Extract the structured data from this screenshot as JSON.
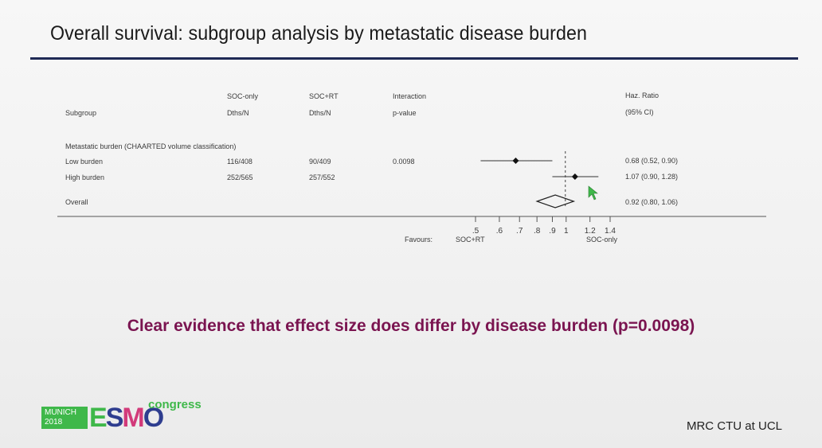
{
  "slide": {
    "title": "Overall survival: subgroup analysis by metastatic disease burden",
    "headline": "Clear evidence that effect size does differ by disease burden (p=0.0098)",
    "footer_right": "MRC CTU at UCL",
    "logo": {
      "city_line1": "MUNICH",
      "city_line2": "2018",
      "brand_letters": [
        "E",
        "S",
        "M",
        "O"
      ],
      "congress": "congress"
    }
  },
  "chart_data": {
    "type": "forest",
    "columns": {
      "subgroup": [
        "",
        "Subgroup"
      ],
      "soc_only": [
        "SOC-only",
        "Dths/N"
      ],
      "soc_rt": [
        "SOC+RT",
        "Dths/N"
      ],
      "interaction": [
        "Interaction",
        "p-value"
      ],
      "hr": [
        "Haz. Ratio",
        "(95% CI)"
      ]
    },
    "group_label": "Metastatic burden (CHAARTED volume classification)",
    "rows": [
      {
        "label": "Low burden",
        "soc_only": "116/408",
        "soc_rt": "90/409",
        "p": "0.0098",
        "hr": 0.68,
        "lo": 0.52,
        "hi": 0.9,
        "hr_text": "0.68 (0.52, 0.90)"
      },
      {
        "label": "High burden",
        "soc_only": "252/565",
        "soc_rt": "257/552",
        "p": "",
        "hr": 1.07,
        "lo": 0.9,
        "hi": 1.28,
        "hr_text": "1.07 (0.90, 1.28)"
      }
    ],
    "overall": {
      "label": "Overall",
      "hr": 0.92,
      "lo": 0.8,
      "hi": 1.06,
      "hr_text": "0.92 (0.80, 1.06)"
    },
    "x_axis": {
      "scale": "log",
      "ticks": [
        0.5,
        0.6,
        0.7,
        0.8,
        0.9,
        1,
        1.2,
        1.4
      ],
      "tick_labels": [
        ".5",
        ".6",
        ".7",
        ".8",
        ".9",
        "1",
        "1.2",
        "1.4"
      ],
      "reference": 1,
      "xlim": [
        0.5,
        1.4
      ]
    },
    "favours": {
      "label": "Favours:",
      "left": "SOC+RT",
      "right": "SOC-only"
    }
  },
  "colors": {
    "title_rule": "#1f2a55",
    "headline": "#7a1450",
    "esmo_green": "#3fb84a",
    "esmo_blue": "#2e3d8f",
    "esmo_pink": "#d23a7a"
  }
}
